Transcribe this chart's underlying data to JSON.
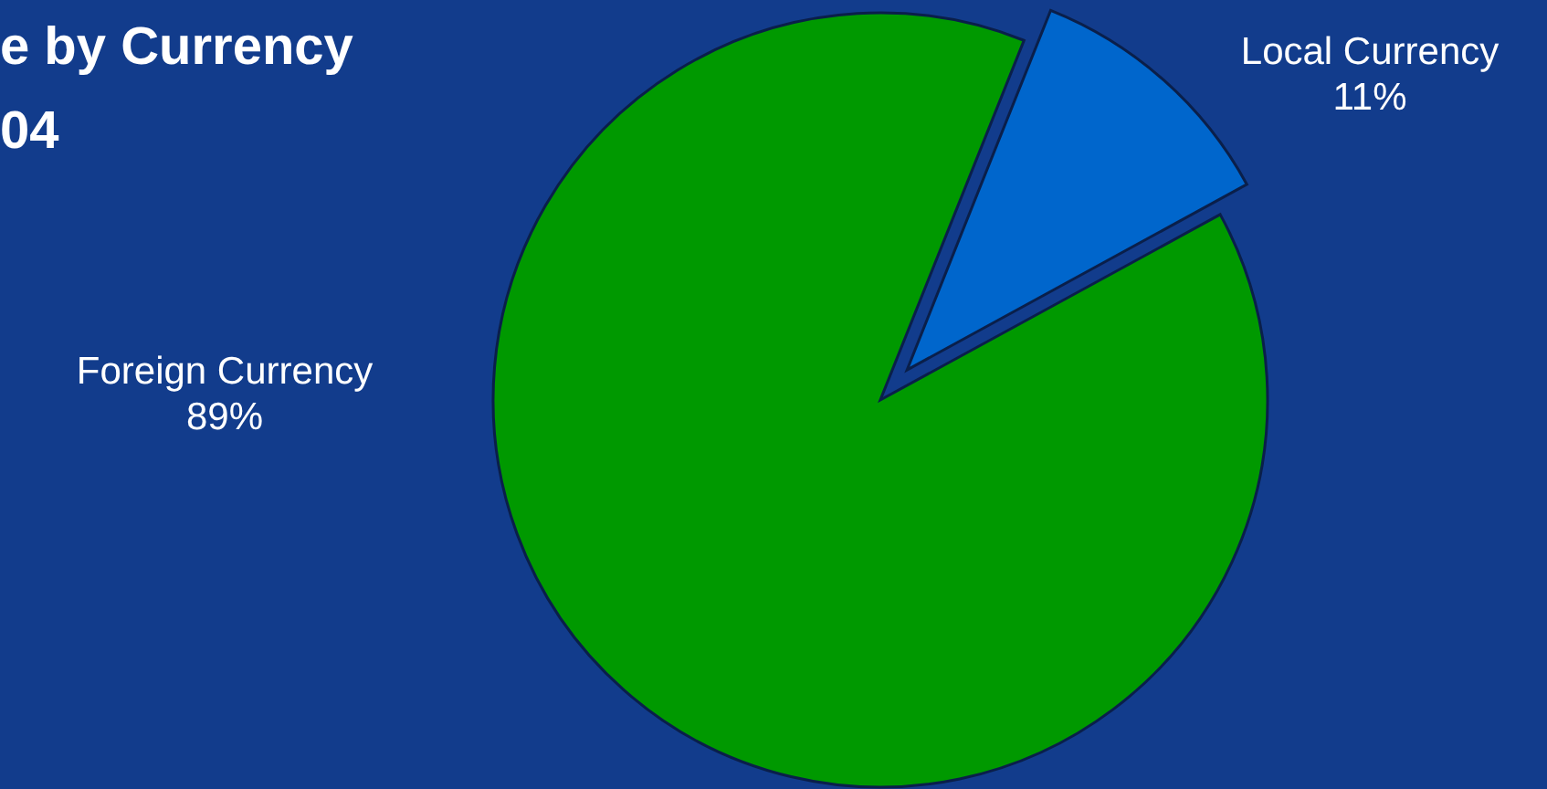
{
  "chart_data": {
    "type": "pie",
    "title": "e by Currency",
    "subtitle": "04",
    "categories": [
      "Local Currency",
      "Foreign Currency"
    ],
    "values": [
      11,
      89
    ],
    "value_labels": [
      "11%",
      "89%"
    ],
    "colors": [
      "#0066cc",
      "#009900"
    ]
  }
}
